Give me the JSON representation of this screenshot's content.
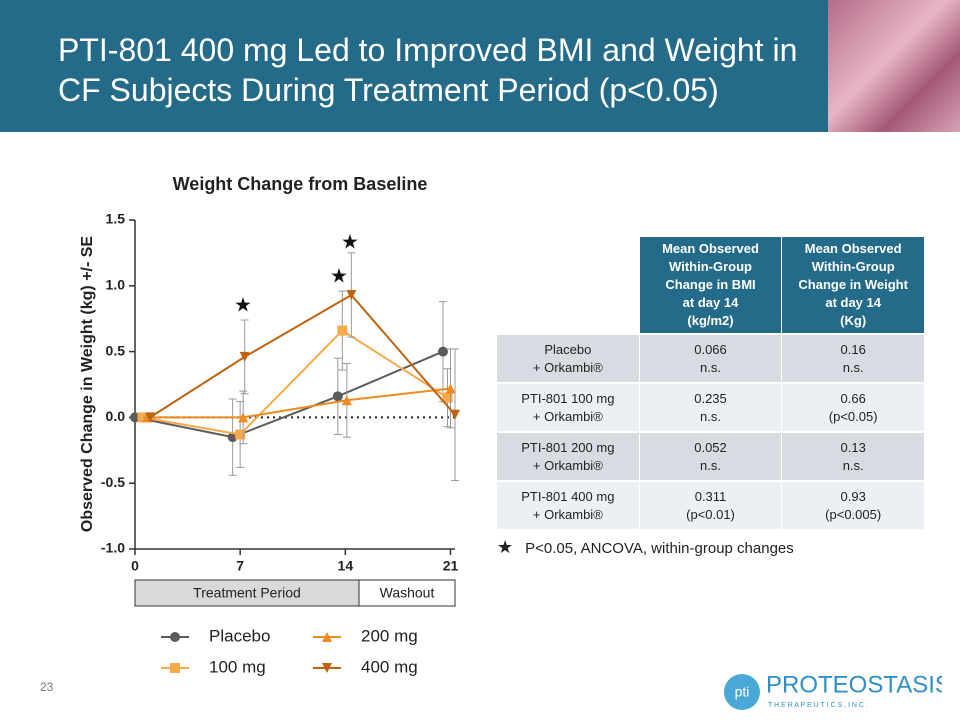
{
  "header": {
    "title_lines": [
      "PTI-801 400 mg Led to Improved BMI and Weight in",
      "CF Subjects During Treatment Period (p<0.05)"
    ]
  },
  "chart_data": {
    "type": "line",
    "title": "Weight Change from Baseline",
    "y_label": "Observed Change in Weight (kg)   +/- SE",
    "xlim": [
      0,
      21.3
    ],
    "xticks": [
      0,
      7,
      14,
      21
    ],
    "ylim": [
      -1.0,
      1.5
    ],
    "yticks": [
      1.5,
      {
        "value": 1.0,
        "label": "1.0"
      },
      0.5,
      {
        "value": 0.0,
        "label": "0.0"
      },
      -0.5,
      {
        "value": -1.0,
        "label": "-1.0"
      }
    ],
    "reference_line": 0,
    "significance_marker": "★",
    "periods": [
      "Treatment Period",
      "Washout"
    ],
    "series": [
      {
        "name": "Placebo",
        "color": "#5b5b5b",
        "marker": "circle",
        "x": [
          0,
          6.5,
          13.5,
          20.5
        ],
        "values": [
          0,
          -0.15,
          0.16,
          0.5
        ],
        "errors": [
          0,
          0.29,
          0.29,
          0.38
        ]
      },
      {
        "name": "100 mg",
        "color": "#f7a94c",
        "marker": "square",
        "x": [
          0.5,
          7,
          13.8,
          20.8
        ],
        "values": [
          0,
          -0.13,
          0.66,
          0.15
        ],
        "errors": [
          0,
          0.25,
          0.3,
          0.22
        ]
      },
      {
        "name": "200 mg",
        "color": "#ee8b1e",
        "marker": "triangle-up",
        "x": [
          0.8,
          7.2,
          14.1,
          21
        ],
        "values": [
          0,
          0.0,
          0.13,
          0.22
        ],
        "errors": [
          0,
          0.2,
          0.28,
          0.3
        ]
      },
      {
        "name": "400 mg",
        "color": "#c0620f",
        "marker": "triangle-down",
        "x": [
          1,
          7.3,
          14.4,
          21.3
        ],
        "values": [
          0,
          0.46,
          0.93,
          0.02
        ],
        "errors": [
          0,
          0.28,
          0.32,
          0.5
        ]
      }
    ]
  },
  "table": {
    "header": [
      [],
      [
        "Mean Observed",
        "Within-Group",
        "Change in BMI",
        "at day 14",
        "(kg/m2)"
      ],
      [
        "Mean Observed",
        "Within-Group",
        "Change in Weight",
        "at day 14",
        "(Kg)"
      ]
    ],
    "rows": [
      [
        [
          "Placebo",
          "+ Orkambi®"
        ],
        [
          "0.066",
          "n.s."
        ],
        [
          "0.16",
          "n.s."
        ]
      ],
      [
        [
          "PTI-801 100 mg",
          "+ Orkambi®"
        ],
        [
          "0.235",
          "n.s."
        ],
        [
          "0.66",
          "(p<0.05)"
        ]
      ],
      [
        [
          "PTI-801 200 mg",
          "+ Orkambi®"
        ],
        [
          "0.052",
          "n.s."
        ],
        [
          "0.13",
          "n.s."
        ]
      ],
      [
        [
          "PTI-801 400 mg",
          "+ Orkambi®"
        ],
        [
          "0.311",
          "(p<0.01)"
        ],
        [
          "0.93",
          "(p<0.005)"
        ]
      ]
    ]
  },
  "footnote": "P<0.05, ANCOVA, within-group changes",
  "page_number": "23",
  "logo": {
    "mark": "pti",
    "name": "PROTEOSTASIS",
    "tagline": "T H E R A P E U T I C S ,  I N C ."
  }
}
